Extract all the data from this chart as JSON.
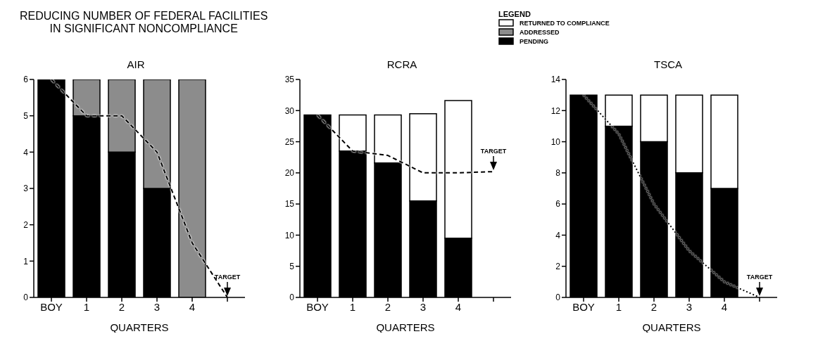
{
  "chart_data": [
    {
      "type": "bar",
      "title": "REDUCING NUMBER OF FEDERAL FACILITIES\nIN SIGNIFICANT NONCOMPLIANCE",
      "subtitle": "AIR",
      "xlabel": "QUARTERS",
      "legend_title": "LEGEND",
      "legend": "top right",
      "stacked": true,
      "marker": "none",
      "categories": [
        "BOY",
        "1",
        "2",
        "3",
        "4",
        null
      ],
      "ylim": [
        0,
        6
      ],
      "yticks": [
        0,
        1,
        2,
        3,
        4,
        5,
        6
      ],
      "series": [
        {
          "name": "PENDING",
          "color": "#000000",
          "values": [
            6,
            5,
            4,
            3,
            0,
            null
          ]
        },
        {
          "name": "ADDRESSED",
          "color": "#8c8c8c",
          "values": [
            0,
            1,
            2,
            3,
            6,
            null
          ]
        },
        {
          "name": "RETURNED TO COMPLIANCE",
          "color": "#ffffff",
          "values": [
            0,
            0,
            0,
            0,
            0,
            null
          ]
        },
        {
          "name": "TARGET",
          "type": "line",
          "line_style": "dashed",
          "color": "#000000",
          "values": [
            6,
            5,
            5,
            4,
            1.5,
            0
          ]
        }
      ]
    },
    {
      "type": "bar",
      "subtitle": "RCRA",
      "xlabel": "QUARTERS",
      "stacked": true,
      "marker": "none",
      "categories": [
        "BOY",
        "1",
        "2",
        "3",
        "4",
        null
      ],
      "ylim": [
        0,
        35
      ],
      "yticks": [
        0,
        5,
        10,
        15,
        20,
        25,
        30,
        35
      ],
      "series": [
        {
          "color": "#000000",
          "values": [
            29.3,
            23.5,
            21.6,
            15.5,
            9.5,
            null
          ]
        },
        {
          "color": "#8c8c8c",
          "values": [
            0,
            0,
            0,
            0,
            0,
            null
          ]
        },
        {
          "color": "#ffffff",
          "values": [
            0,
            5.8,
            7.7,
            14,
            22.1,
            null
          ]
        },
        {
          "name": "TARGET",
          "type": "line",
          "line_style": "dashed",
          "color": "#000000",
          "values": [
            29.3,
            23.5,
            22.8,
            20,
            20,
            20.2
          ]
        }
      ]
    },
    {
      "type": "bar",
      "subtitle": "TSCA",
      "xlabel": "QUARTERS",
      "stacked": true,
      "marker": "none",
      "categories": [
        "BOY",
        "1",
        "2",
        "3",
        "4",
        null
      ],
      "ylim": [
        0,
        14
      ],
      "yticks": [
        0,
        2,
        4,
        6,
        8,
        10,
        12,
        14
      ],
      "series": [
        {
          "color": "#000000",
          "values": [
            13,
            11,
            10,
            8,
            7,
            null
          ]
        },
        {
          "color": "#8c8c8c",
          "values": [
            0,
            0,
            0,
            0,
            0,
            null
          ]
        },
        {
          "color": "#ffffff",
          "values": [
            0,
            2,
            3,
            5,
            6,
            null
          ]
        },
        {
          "name": "TARGET",
          "type": "line",
          "line_style": "dotted",
          "color": "#000000",
          "values": [
            13,
            10.5,
            6,
            3,
            1,
            0
          ]
        }
      ]
    }
  ]
}
